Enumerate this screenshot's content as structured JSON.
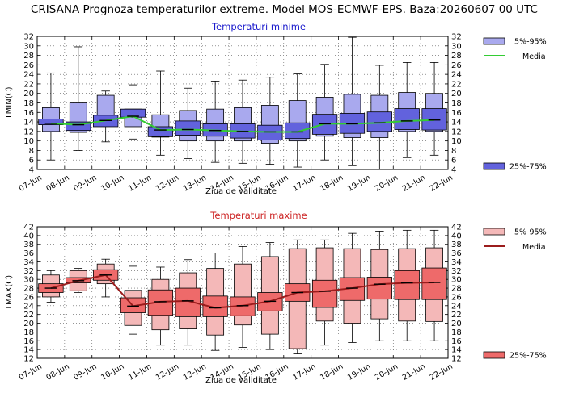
{
  "title": "CRISANA  Prognoza temperaturilor extreme.  Model MOS-ECMWF-EPS. Baza:20260607 00 UTC",
  "chart_data": [
    {
      "type": "box",
      "title": "Temperaturi minime",
      "ylabel": "TMIN(C)",
      "xlabel": "Ziua de validitate",
      "ylim": [
        4,
        32
      ],
      "yticks": [
        4,
        6,
        8,
        10,
        12,
        14,
        16,
        18,
        20,
        22,
        24,
        26,
        28,
        30,
        32
      ],
      "xticklabels": [
        "07-Jun",
        "08-Jun",
        "09-Jun",
        "10-Jun",
        "11-Jun",
        "12-Jun",
        "13-Jun",
        "14-Jun",
        "15-Jun",
        "16-Jun",
        "17-Jun",
        "18-Jun",
        "19-Jun",
        "20-Jun",
        "21-Jun",
        "22-Jun"
      ],
      "box_days": [
        "07-Jun",
        "08-Jun",
        "09-Jun",
        "10-Jun",
        "11-Jun",
        "12-Jun",
        "13-Jun",
        "14-Jun",
        "15-Jun",
        "16-Jun",
        "17-Jun",
        "18-Jun",
        "19-Jun",
        "20-Jun",
        "21-Jun"
      ],
      "p5": [
        6.0,
        8.0,
        9.8,
        10.4,
        7.0,
        6.3,
        5.5,
        5.3,
        5.1,
        4.5,
        6.0,
        4.8,
        4.0,
        6.5,
        7.0
      ],
      "p95": [
        24.3,
        29.8,
        20.5,
        21.8,
        24.7,
        21.1,
        22.6,
        22.8,
        23.4,
        24.1,
        26.1,
        31.8,
        25.9,
        26.5,
        26.5
      ],
      "p25": [
        12.0,
        11.8,
        13.2,
        13.0,
        10.8,
        10.0,
        10.0,
        10.0,
        9.5,
        10.0,
        11.0,
        10.7,
        10.7,
        12.0,
        12.0
      ],
      "p75": [
        17.0,
        18.0,
        19.6,
        16.7,
        15.5,
        16.4,
        16.7,
        17.0,
        17.5,
        18.5,
        19.2,
        19.8,
        19.6,
        20.2,
        20.0
      ],
      "q25": [
        13.4,
        12.2,
        13.0,
        15.0,
        10.9,
        11.2,
        11.0,
        10.6,
        10.2,
        10.5,
        11.4,
        11.6,
        12.0,
        12.4,
        12.3
      ],
      "q75": [
        14.6,
        14.0,
        15.4,
        16.7,
        13.0,
        14.2,
        13.6,
        13.6,
        13.3,
        13.8,
        15.6,
        15.8,
        16.1,
        16.8,
        16.8
      ],
      "mean": [
        13.7,
        13.4,
        14.3,
        15.2,
        12.3,
        12.4,
        12.2,
        12.0,
        11.9,
        11.9,
        13.6,
        13.6,
        13.8,
        14.2,
        14.4
      ],
      "legend": {
        "outer": "5%-95%",
        "mean": "Media",
        "inner": "25%-75%"
      },
      "colors": {
        "outer_fill": "#a9a9ee",
        "inner_fill": "#6262dd",
        "outer_stroke": "#000000",
        "mean_line": "#33cc33",
        "title": "#1a1acc"
      }
    },
    {
      "type": "box",
      "title": "Temperaturi maxime",
      "ylabel": "TMAX(C)",
      "xlabel": "Ziua de validitate",
      "ylim": [
        12,
        42
      ],
      "yticks": [
        12,
        14,
        16,
        18,
        20,
        22,
        24,
        26,
        28,
        30,
        32,
        34,
        36,
        38,
        40,
        42
      ],
      "xticklabels": [
        "07-Jun",
        "08-Jun",
        "09-Jun",
        "10-Jun",
        "11-Jun",
        "12-Jun",
        "13-Jun",
        "14-Jun",
        "15-Jun",
        "16-Jun",
        "17-Jun",
        "18-Jun",
        "19-Jun",
        "20-Jun",
        "21-Jun",
        "22-Jun"
      ],
      "box_days": [
        "07-Jun",
        "08-Jun",
        "09-Jun",
        "10-Jun",
        "11-Jun",
        "12-Jun",
        "13-Jun",
        "14-Jun",
        "15-Jun",
        "16-Jun",
        "17-Jun",
        "18-Jun",
        "19-Jun",
        "20-Jun",
        "21-Jun"
      ],
      "p5": [
        24.8,
        27.0,
        26.0,
        17.5,
        15.0,
        15.0,
        13.8,
        14.5,
        14.0,
        13.0,
        15.0,
        15.6,
        16.0,
        16.0,
        16.0
      ],
      "p95": [
        32.0,
        32.5,
        34.6,
        33.0,
        32.8,
        34.5,
        36.0,
        37.5,
        38.4,
        39.0,
        39.0,
        40.5,
        41.0,
        41.2,
        41.2
      ],
      "p25": [
        26.0,
        27.4,
        29.0,
        19.5,
        18.5,
        18.7,
        17.3,
        19.6,
        17.5,
        14.2,
        20.5,
        20.0,
        21.0,
        20.5,
        20.4
      ],
      "p75": [
        31.0,
        32.0,
        33.5,
        27.5,
        30.0,
        31.5,
        32.5,
        33.5,
        35.2,
        37.0,
        37.2,
        37.0,
        36.8,
        37.0,
        37.2
      ],
      "q25": [
        27.0,
        29.2,
        29.8,
        22.4,
        21.8,
        21.5,
        21.5,
        21.7,
        22.8,
        25.0,
        23.6,
        25.2,
        25.5,
        25.4,
        25.4
      ],
      "q75": [
        29.0,
        30.4,
        32.2,
        25.8,
        27.6,
        28.0,
        26.2,
        26.0,
        27.0,
        29.0,
        29.8,
        30.4,
        30.5,
        32.0,
        32.6
      ],
      "mean": [
        28.0,
        29.7,
        31.0,
        23.9,
        24.9,
        25.1,
        23.5,
        24.0,
        25.0,
        27.0,
        27.3,
        28.0,
        28.9,
        29.2,
        29.3
      ],
      "legend": {
        "outer": "5%-95%",
        "mean": "Media",
        "inner": "25%-75%"
      },
      "colors": {
        "outer_fill": "#f4b8b8",
        "inner_fill": "#ee6a6a",
        "outer_stroke": "#000000",
        "mean_line": "#9b1c1c",
        "title": "#cc2222"
      }
    }
  ]
}
